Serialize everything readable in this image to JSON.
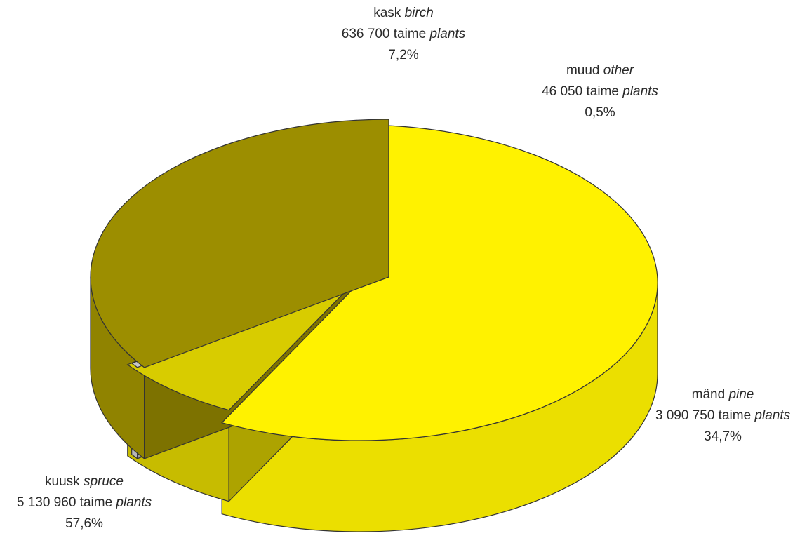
{
  "chart_data": {
    "type": "pie",
    "style": "3d-exploded",
    "title": "",
    "slices": [
      {
        "key": "spruce",
        "name_et": "kuusk",
        "name_en": "spruce",
        "value": 5130960,
        "value_text": "5 130 960",
        "unit_et": "taime",
        "unit_en": "plants",
        "percent": 57.6,
        "percent_text": "57,6%",
        "color": "#fff200"
      },
      {
        "key": "birch",
        "name_et": "kask",
        "name_en": "birch",
        "value": 636700,
        "value_text": "636 700",
        "unit_et": "taime",
        "unit_en": "plants",
        "percent": 7.2,
        "percent_text": "7,2%",
        "color": "#d8cc00"
      },
      {
        "key": "other",
        "name_et": "muud",
        "name_en": "other",
        "value": 46050,
        "value_text": "46 050",
        "unit_et": "taime",
        "unit_en": "plants",
        "percent": 0.5,
        "percent_text": "0,5%",
        "color": "#c8c8c8"
      },
      {
        "key": "pine",
        "name_et": "mänd",
        "name_en": "pine",
        "value": 3090750,
        "value_text": "3 090 750",
        "unit_et": "taime",
        "unit_en": "plants",
        "percent": 34.7,
        "percent_text": "34,7%",
        "color": "#9c8e00"
      }
    ]
  }
}
